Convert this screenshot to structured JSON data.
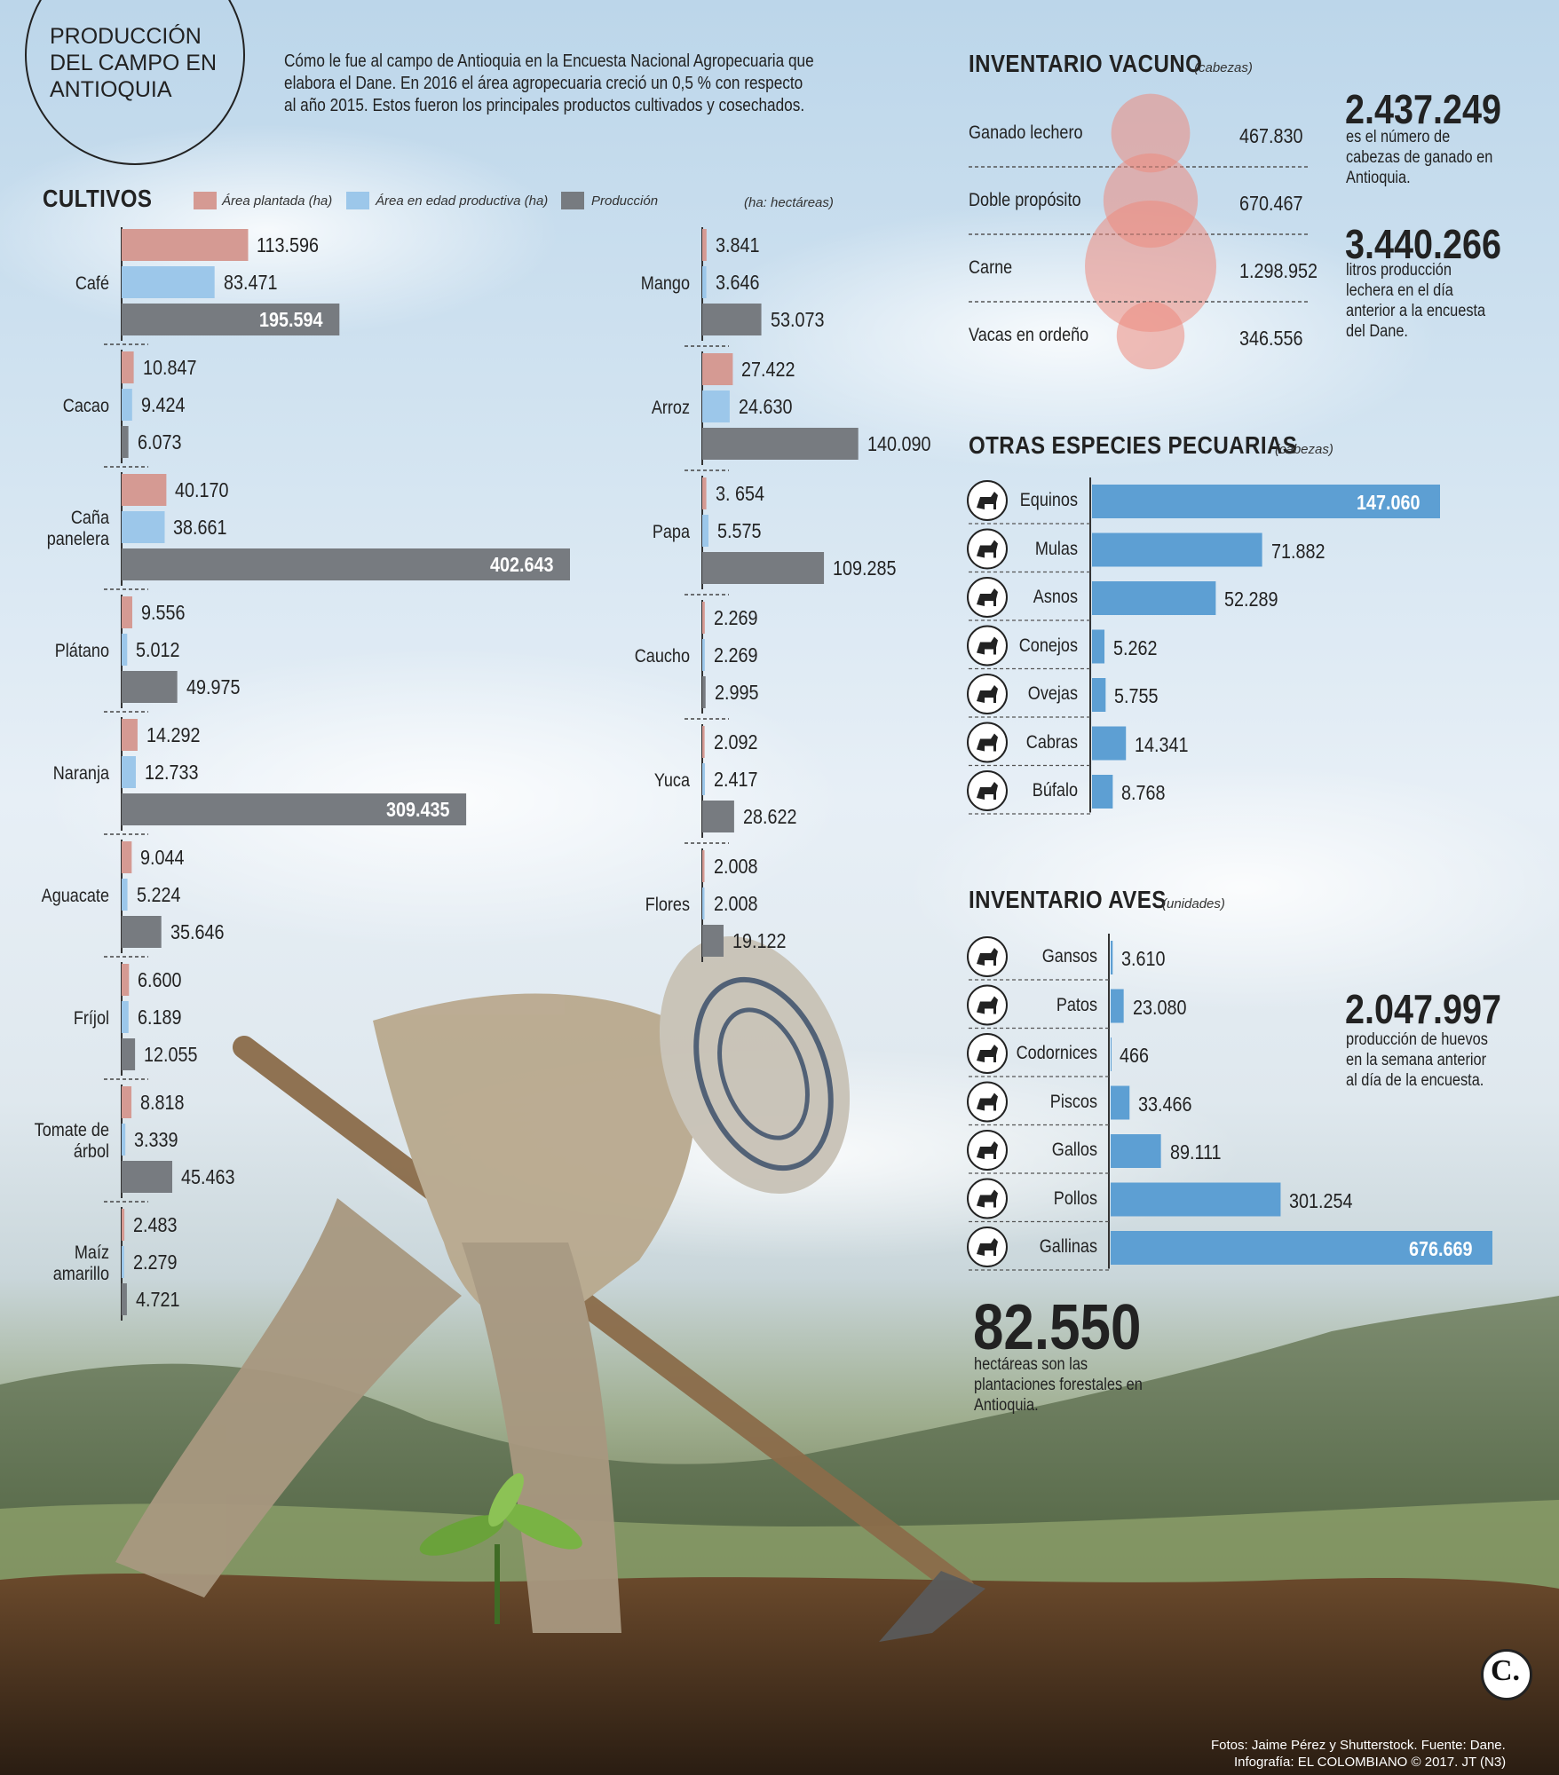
{
  "header": {
    "title_lines": [
      "PRODUCCIÓN",
      "DEL CAMPO EN",
      "ANTIOQUIA"
    ],
    "intro_lines": [
      "Cómo le fue al campo de Antioquia en la Encuesta Nacional Agropecuaria que",
      "elabora el Dane. En 2016 el área agropecuaria creció un 0,5 % con respecto",
      "al año 2015. Estos fueron los principales productos cultivados y cosechados."
    ]
  },
  "cultivos": {
    "heading": "CULTIVOS",
    "unit_note": "(ha: hectáreas)",
    "legend": [
      "Área plantada (ha)",
      "Área en edad productiva (ha)",
      "Producción"
    ]
  },
  "vacuno": {
    "heading": "INVENTARIO VACUNO",
    "unit": "(cabezas)",
    "stat1_value": "2.437.249",
    "stat1_desc": "es el número de cabezas de ganado en Antioquia.",
    "stat2_value": "3.440.266",
    "stat2_desc": "litros producción lechera en el día anterior a la encuesta del Dane."
  },
  "pecuarias": {
    "heading": "OTRAS ESPECIES PECUARIAS",
    "unit": "(cabezas)"
  },
  "aves": {
    "heading": "INVENTARIO AVES",
    "unit": "(unidades)",
    "stat_value": "2.047.997",
    "stat_desc": "producción de huevos en la semana anterior al día de la encuesta."
  },
  "forestal": {
    "value": "82.550",
    "desc": "hectáreas son las plantaciones forestales en Antioquia."
  },
  "credits": {
    "line1": "Fotos: Jaime Pérez y Shutterstock. Fuente: Dane.",
    "line2": "Infografía: EL COLOMBIANO © 2017. JT (N3)",
    "logo_letter": "C."
  },
  "colors": {
    "plantada": "#d59a93",
    "productiva": "#9cc7ea",
    "produccion": "#777b80",
    "animal_bar": "#5d9fd3",
    "bubble": "#ec8a7e"
  },
  "chart_data": [
    {
      "type": "bar",
      "title": "CULTIVOS",
      "orientation": "horizontal",
      "series_names": [
        "Área plantada (ha)",
        "Área en edad productiva (ha)",
        "Producción"
      ],
      "groups": [
        {
          "label": "Café",
          "values": [
            113596,
            83471,
            195594
          ],
          "labels": [
            "113.596",
            "83.471",
            "195.594"
          ]
        },
        {
          "label": "Cacao",
          "values": [
            10847,
            9424,
            6073
          ],
          "labels": [
            "10.847",
            "9.424",
            "6.073"
          ]
        },
        {
          "label": "Caña panelera",
          "values": [
            40170,
            38661,
            402643
          ],
          "labels": [
            "40.170",
            "38.661",
            "402.643"
          ]
        },
        {
          "label": "Plátano",
          "values": [
            9556,
            5012,
            49975
          ],
          "labels": [
            "9.556",
            "5.012",
            "49.975"
          ]
        },
        {
          "label": "Naranja",
          "values": [
            14292,
            12733,
            309435
          ],
          "labels": [
            "14.292",
            "12.733",
            "309.435"
          ]
        },
        {
          "label": "Aguacate",
          "values": [
            9044,
            5224,
            35646
          ],
          "labels": [
            "9.044",
            "5.224",
            "35.646"
          ]
        },
        {
          "label": "Fríjol",
          "values": [
            6600,
            6189,
            12055
          ],
          "labels": [
            "6.600",
            "6.189",
            "12.055"
          ]
        },
        {
          "label": "Tomate de árbol",
          "values": [
            8818,
            3339,
            45463
          ],
          "labels": [
            "8.818",
            "3.339",
            "45.463"
          ]
        },
        {
          "label": "Maíz amarillo",
          "values": [
            2483,
            2279,
            4721
          ],
          "labels": [
            "2.483",
            "2.279",
            "4.721"
          ]
        },
        {
          "label": "Mango",
          "values": [
            3841,
            3646,
            53073
          ],
          "labels": [
            "3.841",
            "3.646",
            "53.073"
          ]
        },
        {
          "label": "Arroz",
          "values": [
            27422,
            24630,
            140090
          ],
          "labels": [
            "27.422",
            "24.630",
            "140.090"
          ]
        },
        {
          "label": "Papa",
          "values": [
            3654,
            5575,
            109285
          ],
          "labels": [
            "3. 654",
            "5.575",
            "109.285"
          ]
        },
        {
          "label": "Caucho",
          "values": [
            2269,
            2269,
            2995
          ],
          "labels": [
            "2.269",
            "2.269",
            "2.995"
          ]
        },
        {
          "label": "Yuca",
          "values": [
            2092,
            2417,
            28622
          ],
          "labels": [
            "2.092",
            "2.417",
            "28.622"
          ]
        },
        {
          "label": "Flores",
          "values": [
            2008,
            2008,
            19122
          ],
          "labels": [
            "2.008",
            "2.008",
            "19.122"
          ]
        }
      ]
    },
    {
      "type": "bubble",
      "title": "INVENTARIO VACUNO",
      "categories": [
        "Ganado lechero",
        "Doble propósito",
        "Carne",
        "Vacas en ordeño"
      ],
      "values": [
        467830,
        670467,
        1298952,
        346556
      ],
      "labels": [
        "467.830",
        "670.467",
        "1.298.952",
        "346.556"
      ]
    },
    {
      "type": "bar",
      "title": "OTRAS ESPECIES PECUARIAS",
      "orientation": "horizontal",
      "categories": [
        "Equinos",
        "Mulas",
        "Asnos",
        "Conejos",
        "Ovejas",
        "Cabras",
        "Búfalo"
      ],
      "values": [
        147060,
        71882,
        52289,
        5262,
        5755,
        14341,
        8768
      ],
      "labels": [
        "147.060",
        "71.882",
        "52.289",
        "5.262",
        "5.755",
        "14.341",
        "8.768"
      ],
      "icons": [
        "horse-icon",
        "mule-icon",
        "donkey-icon",
        "rabbit-icon",
        "sheep-icon",
        "goat-icon",
        "buffalo-icon"
      ]
    },
    {
      "type": "bar",
      "title": "INVENTARIO AVES",
      "orientation": "horizontal",
      "categories": [
        "Gansos",
        "Patos",
        "Codornices",
        "Piscos",
        "Gallos",
        "Pollos",
        "Gallinas"
      ],
      "values": [
        3610,
        23080,
        466,
        33466,
        89111,
        301254,
        676669
      ],
      "labels": [
        "3.610",
        "23.080",
        "466",
        "33.466",
        "89.111",
        "301.254",
        "676.669"
      ],
      "icons": [
        "goose-icon",
        "duck-icon",
        "quail-icon",
        "turkey-icon",
        "rooster-icon",
        "chicken-icon",
        "hen-icon"
      ]
    }
  ]
}
